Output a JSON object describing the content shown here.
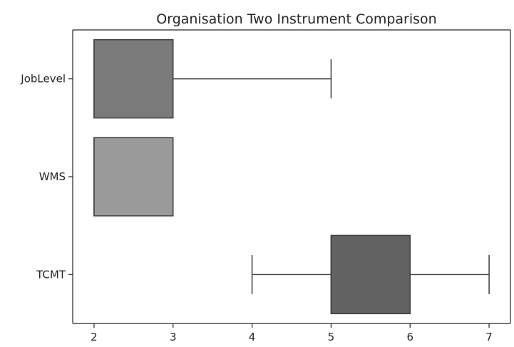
{
  "chart_data": {
    "type": "boxplot",
    "orientation": "horizontal",
    "title": "Organisation Two Instrument Comparison",
    "xlabel": "",
    "ylabel": "",
    "categories": [
      "JobLevel",
      "WMS",
      "TCMT"
    ],
    "xlim": [
      1.73,
      7.27
    ],
    "xticks": [
      2,
      3,
      4,
      5,
      6,
      7
    ],
    "grid": false,
    "boxes": [
      {
        "category": "JobLevel",
        "whislo": 2,
        "q1": 2,
        "med": 2,
        "q3": 3,
        "whishi": 5,
        "color": "#7a7a7a"
      },
      {
        "category": "WMS",
        "whislo": 2,
        "q1": 2,
        "med": 2,
        "q3": 3,
        "whishi": 3,
        "color": "#9a9a9a"
      },
      {
        "category": "TCMT",
        "whislo": 4,
        "q1": 5,
        "med": 5,
        "q3": 6,
        "whishi": 7,
        "color": "#626262"
      }
    ],
    "colors": {
      "edge": "#3f3f3f",
      "axis": "#262626"
    }
  }
}
